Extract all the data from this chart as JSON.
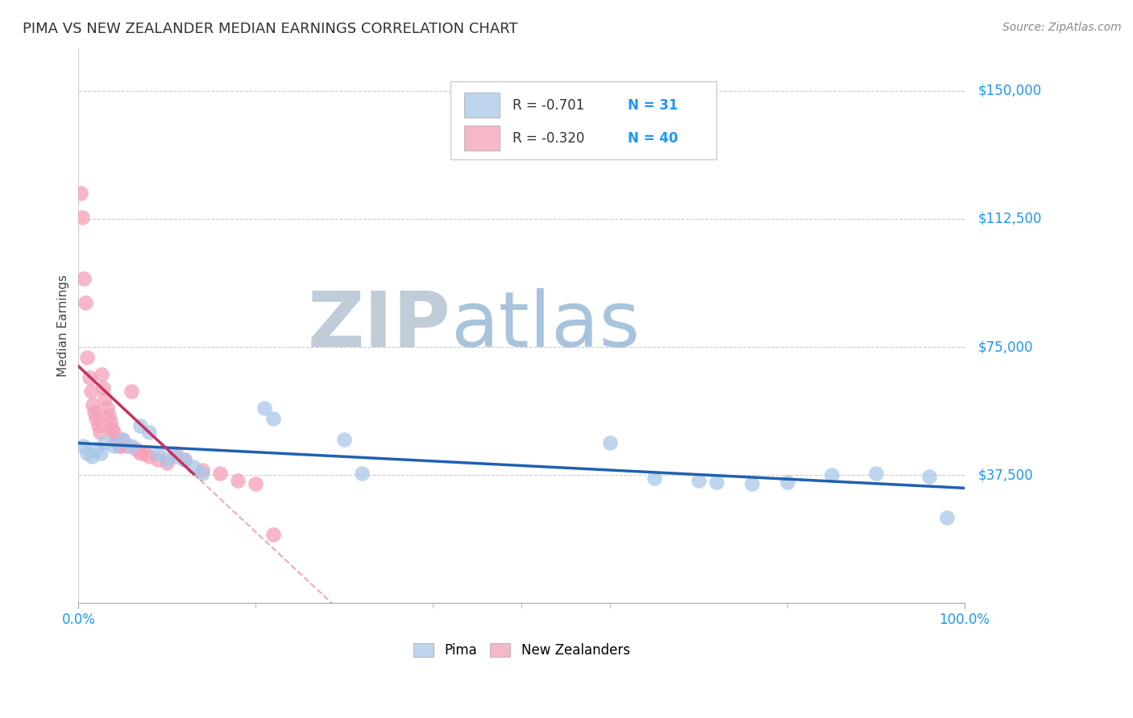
{
  "title": "PIMA VS NEW ZEALANDER MEDIAN EARNINGS CORRELATION CHART",
  "source": "Source: ZipAtlas.com",
  "ylabel": "Median Earnings",
  "xlim": [
    0.0,
    1.0
  ],
  "ylim": [
    0,
    162500
  ],
  "yticks": [
    0,
    37500,
    75000,
    112500,
    150000
  ],
  "ytick_labels": [
    "",
    "$37,500",
    "$75,000",
    "$112,500",
    "$150,000"
  ],
  "legend_R_blue": "-0.701",
  "legend_N_blue": "31",
  "legend_R_pink": "-0.320",
  "legend_N_pink": "40",
  "blue_color": "#a8c8e8",
  "pink_color": "#f4a0b8",
  "blue_line_color": "#2060b0",
  "pink_line_color": "#c83060",
  "grid_color": "#cccccc",
  "background_color": "#ffffff",
  "watermark_zip": "ZIP",
  "watermark_atlas": "atlas",
  "watermark_zip_color": "#c0ccd8",
  "watermark_atlas_color": "#a8c4dc",
  "pima_x": [
    0.005,
    0.01,
    0.015,
    0.02,
    0.025,
    0.03,
    0.04,
    0.05,
    0.06,
    0.07,
    0.08,
    0.09,
    0.1,
    0.11,
    0.12,
    0.13,
    0.14,
    0.21,
    0.22,
    0.3,
    0.32,
    0.6,
    0.65,
    0.7,
    0.72,
    0.76,
    0.8,
    0.85,
    0.9,
    0.96,
    0.98
  ],
  "pima_y": [
    46000,
    44000,
    43000,
    45000,
    44000,
    47000,
    46000,
    48000,
    46000,
    52000,
    50000,
    44000,
    42000,
    43000,
    42000,
    40000,
    38000,
    57000,
    54000,
    48000,
    38000,
    47000,
    36500,
    36000,
    35500,
    35000,
    35500,
    37500,
    38000,
    37000,
    25000
  ],
  "nz_x": [
    0.002,
    0.004,
    0.006,
    0.008,
    0.01,
    0.012,
    0.014,
    0.016,
    0.018,
    0.02,
    0.022,
    0.024,
    0.026,
    0.028,
    0.03,
    0.032,
    0.034,
    0.036,
    0.038,
    0.04,
    0.042,
    0.044,
    0.046,
    0.048,
    0.05,
    0.055,
    0.06,
    0.065,
    0.07,
    0.075,
    0.08,
    0.09,
    0.1,
    0.11,
    0.12,
    0.14,
    0.16,
    0.18,
    0.2,
    0.22
  ],
  "nz_y": [
    120000,
    113000,
    95000,
    88000,
    72000,
    66000,
    62000,
    58000,
    56000,
    54000,
    52000,
    50000,
    67000,
    63000,
    60000,
    57000,
    55000,
    53000,
    51000,
    50000,
    48000,
    47000,
    46000,
    46000,
    48000,
    46000,
    62000,
    45000,
    44000,
    44000,
    43000,
    42000,
    41000,
    44000,
    42000,
    39000,
    38000,
    36000,
    35000,
    20000
  ]
}
